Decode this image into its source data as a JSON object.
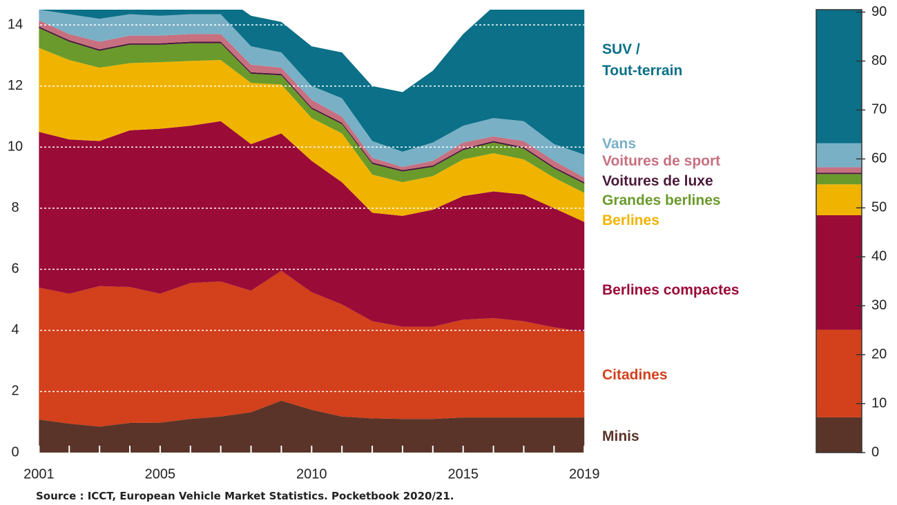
{
  "chart_data": [
    {
      "type": "stacked_area",
      "x": [
        2001,
        2002,
        2003,
        2004,
        2005,
        2006,
        2007,
        2008,
        2009,
        2010,
        2011,
        2012,
        2013,
        2014,
        2015,
        2016,
        2017,
        2018,
        2019
      ],
      "xlim": [
        2000.9,
        2019.2
      ],
      "xticks": [
        2001,
        2005,
        2010,
        2015,
        2019
      ],
      "ylim": [
        0,
        14.5
      ],
      "yticks": [
        0,
        2,
        4,
        6,
        8,
        10,
        12,
        14
      ],
      "grid": true,
      "series": [
        {
          "name": "Minis",
          "color": "#5a3428",
          "values": [
            1.08,
            0.95,
            0.85,
            0.97,
            0.98,
            1.1,
            1.18,
            1.32,
            1.7,
            1.4,
            1.18,
            1.12,
            1.1,
            1.1,
            1.15,
            1.15,
            1.15,
            1.15,
            1.15
          ]
        },
        {
          "name": "Citadines",
          "color": "#d2401c",
          "values": [
            4.32,
            4.25,
            4.6,
            4.45,
            4.22,
            4.45,
            4.42,
            3.98,
            4.25,
            3.85,
            3.67,
            3.18,
            3.02,
            3.02,
            3.2,
            3.25,
            3.15,
            2.95,
            2.8
          ]
        },
        {
          "name": "Berlines compactes",
          "color": "#9a0b38",
          "values": [
            5.1,
            5.05,
            4.75,
            5.13,
            5.4,
            5.15,
            5.25,
            4.8,
            4.5,
            4.3,
            4.0,
            3.55,
            3.63,
            3.83,
            4.05,
            4.15,
            4.15,
            3.9,
            3.6
          ]
        },
        {
          "name": "Berlines",
          "color": "#f0b400",
          "values": [
            2.75,
            2.6,
            2.4,
            2.2,
            2.18,
            2.12,
            2.0,
            2.0,
            1.6,
            1.4,
            1.6,
            1.25,
            1.1,
            1.1,
            1.2,
            1.25,
            1.15,
            1.0,
            0.95
          ]
        },
        {
          "name": "Grandes berlines",
          "color": "#6a9a2c",
          "values": [
            0.65,
            0.6,
            0.55,
            0.6,
            0.57,
            0.58,
            0.55,
            0.3,
            0.3,
            0.3,
            0.3,
            0.35,
            0.35,
            0.3,
            0.3,
            0.35,
            0.35,
            0.3,
            0.3
          ]
        },
        {
          "name": "Voitures de luxe",
          "color": "#4a1a3a",
          "values": [
            0.05,
            0.05,
            0.05,
            0.05,
            0.05,
            0.05,
            0.05,
            0.05,
            0.05,
            0.05,
            0.05,
            0.05,
            0.05,
            0.05,
            0.05,
            0.05,
            0.05,
            0.05,
            0.05
          ]
        },
        {
          "name": "Voitures de sport",
          "color": "#c77080",
          "values": [
            0.2,
            0.2,
            0.25,
            0.25,
            0.25,
            0.25,
            0.25,
            0.25,
            0.2,
            0.25,
            0.2,
            0.15,
            0.1,
            0.15,
            0.2,
            0.15,
            0.2,
            0.2,
            0.15
          ]
        },
        {
          "name": "Vans",
          "color": "#7ab0c6",
          "values": [
            0.35,
            0.65,
            0.75,
            0.7,
            0.65,
            0.65,
            0.65,
            0.6,
            0.5,
            0.45,
            0.6,
            0.55,
            0.5,
            0.6,
            0.55,
            0.6,
            0.65,
            0.55,
            0.75
          ]
        },
        {
          "name": "SUV /\nTout-terrain",
          "color": "#0b7088",
          "values": [
            0.3,
            0.35,
            0.4,
            0.45,
            0.5,
            0.65,
            0.65,
            1.0,
            1.0,
            1.3,
            1.5,
            1.8,
            1.95,
            2.35,
            3.0,
            3.65,
            4.35,
            5.4,
            5.75
          ]
        }
      ],
      "source": "Source : ICCT, European Vehicle Market Statistics. Pocketbook 2020/21."
    },
    {
      "type": "stacked_bar",
      "values": [
        7.2,
        17.9,
        23.4,
        6.3,
        2.1,
        0.3,
        1.1,
        4.9,
        36.8
      ],
      "colors": [
        "#5a3428",
        "#d2401c",
        "#9a0b38",
        "#f0b400",
        "#6a9a2c",
        "#4a1a3a",
        "#c77080",
        "#7ab0c6",
        "#0b7088"
      ],
      "ylim": [
        0,
        90.5
      ],
      "yticks": [
        0,
        10,
        20,
        30,
        40,
        50,
        60,
        70,
        80,
        90
      ]
    }
  ]
}
